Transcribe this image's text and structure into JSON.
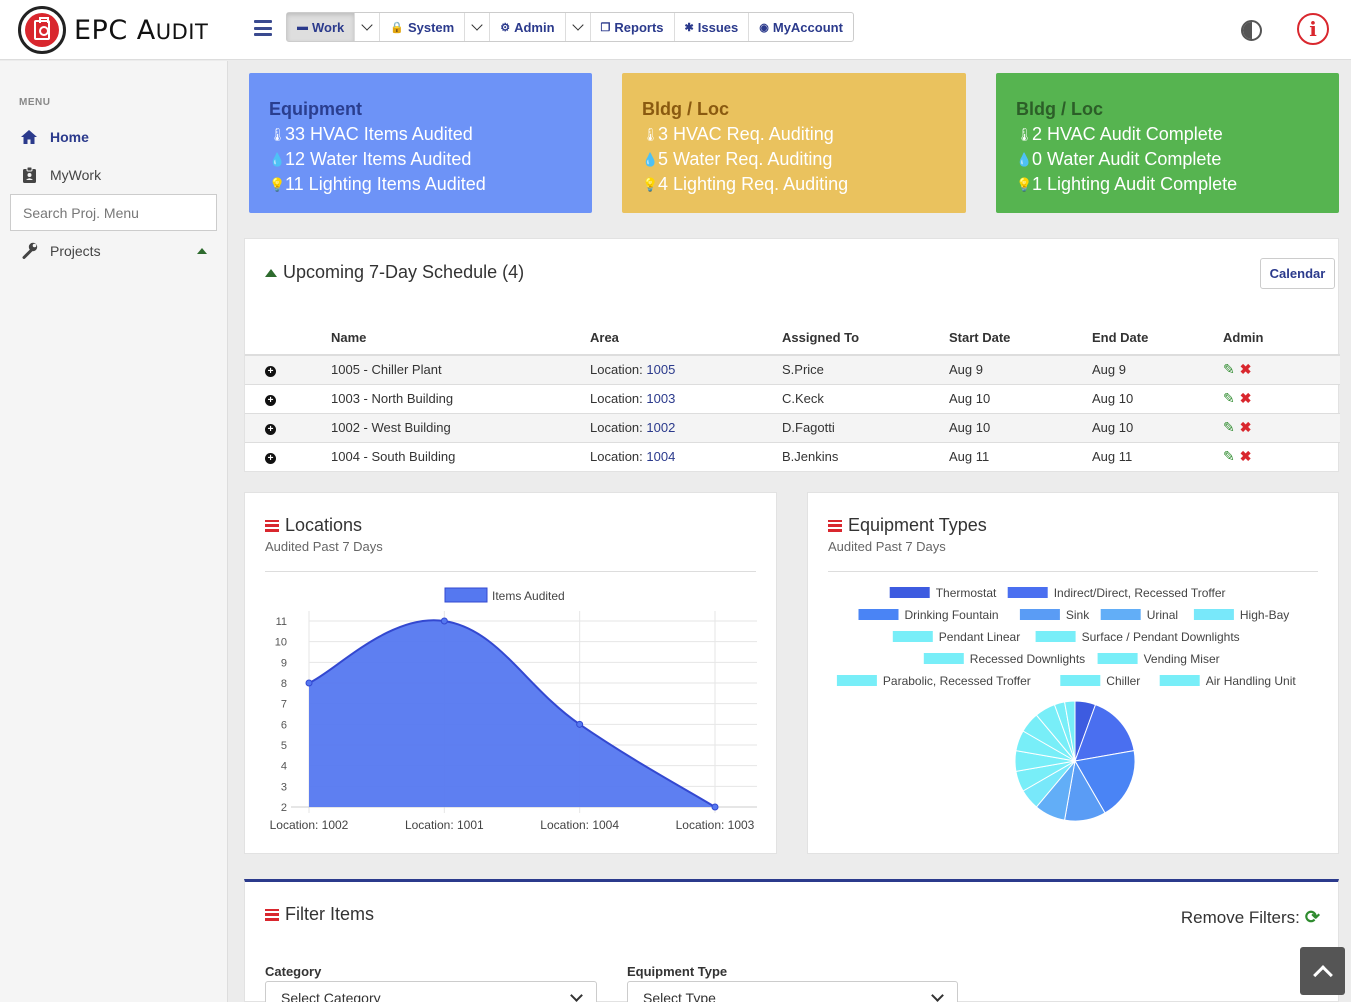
{
  "brand": {
    "name_big": "EPC A",
    "name_small": "UDIT"
  },
  "nav": {
    "work": "Work",
    "system": "System",
    "admin": "Admin",
    "reports": "Reports",
    "issues": "Issues",
    "myaccount": "MyAccount"
  },
  "sidebar": {
    "menu_title": "MENU",
    "home": "Home",
    "mywork": "MyWork",
    "search_placeholder": "Search Proj. Menu",
    "projects": "Projects"
  },
  "cards": [
    {
      "title": "Equipment",
      "lines": [
        "33 HVAC Items Audited",
        "12 Water Items Audited",
        "11 Lighting Items Audited"
      ],
      "color": "#6d93f7"
    },
    {
      "title": "Bldg / Loc",
      "lines": [
        "3 HVAC Req. Auditing",
        "5 Water Req. Auditing",
        "4 Lighting Req. Auditing"
      ],
      "color": "#eac25e"
    },
    {
      "title": "Bldg / Loc",
      "lines": [
        "2 HVAC Audit Complete",
        "0 Water Audit Complete",
        "1 Lighting Audit Complete"
      ],
      "color": "#56b450"
    }
  ],
  "schedule": {
    "title": "Upcoming 7-Day Schedule (4)",
    "calendar_btn": "Calendar",
    "headers": {
      "name": "Name",
      "area": "Area",
      "assigned": "Assigned To",
      "start": "Start Date",
      "end": "End Date",
      "admin": "Admin"
    },
    "location_prefix": "Location: ",
    "rows": [
      {
        "name": "1005 - Chiller Plant",
        "loc": "1005",
        "assigned": "S.Price",
        "start": "Aug 9",
        "end": "Aug 9"
      },
      {
        "name": "1003 - North Building",
        "loc": "1003",
        "assigned": "C.Keck",
        "start": "Aug 10",
        "end": "Aug 10"
      },
      {
        "name": "1002 - West Building",
        "loc": "1002",
        "assigned": "D.Fagotti",
        "start": "Aug 10",
        "end": "Aug 10"
      },
      {
        "name": "1004 - South Building",
        "loc": "1004",
        "assigned": "B.Jenkins",
        "start": "Aug 11",
        "end": "Aug 11"
      }
    ]
  },
  "locations_panel": {
    "title": "Locations",
    "subtitle": "Audited Past 7 Days"
  },
  "equipment_panel": {
    "title": "Equipment Types",
    "subtitle": "Audited Past 7 Days"
  },
  "filter": {
    "title": "Filter Items",
    "remove": "Remove Filters:",
    "category_label": "Category",
    "category_value": "Select Category",
    "type_label": "Equipment Type",
    "type_value": "Select Type"
  },
  "chart_data": [
    {
      "type": "area",
      "x": [
        "Location: 1002",
        "Location: 1001",
        "Location: 1004",
        "Location: 1003"
      ],
      "series": [
        {
          "name": "Items Audited",
          "values": [
            8,
            11,
            6,
            2
          ]
        }
      ],
      "ylim": [
        2,
        11
      ],
      "yticks": [
        2,
        3,
        4,
        5,
        6,
        7,
        8,
        9,
        10,
        11
      ],
      "grid": true,
      "legend": "top",
      "color": "#5578f0"
    },
    {
      "type": "pie",
      "legend": "top",
      "categories": [
        "Thermostat",
        "Indirect/Direct, Recessed Troffer",
        "Drinking Fountain",
        "Sink",
        "Urinal",
        "High-Bay",
        "Pendant Linear",
        "Surface / Pendant Downlights",
        "Recessed Downlights",
        "Vending Miser",
        "Parabolic, Recessed Troffer",
        "Chiller",
        "Air Handling Unit"
      ],
      "values": [
        2,
        6,
        7,
        4,
        3,
        2,
        2,
        2,
        2,
        2,
        2,
        1,
        1
      ],
      "colors": [
        "#3d5be0",
        "#4a6ff0",
        "#4a84f5",
        "#5a9cf5",
        "#62aef7",
        "#78e8fa",
        "#78eef8",
        "#78eef8",
        "#78eef8",
        "#78eef8",
        "#78eef8",
        "#78eef8",
        "#78eef8"
      ]
    }
  ]
}
